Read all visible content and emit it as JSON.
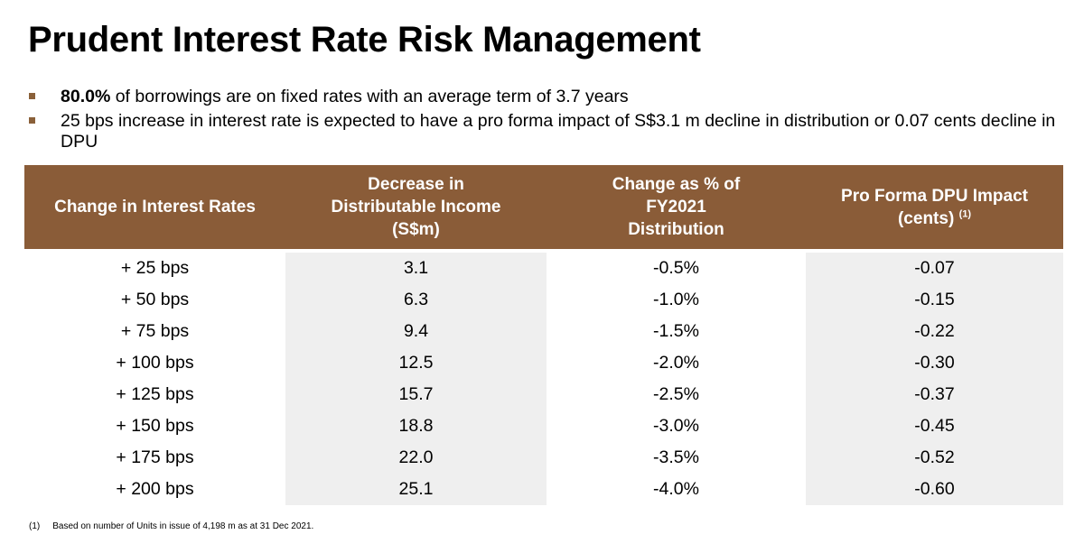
{
  "page": {
    "title": "Prudent Interest Rate Risk Management"
  },
  "bullets": [
    {
      "bold": "80.0%",
      "text": " of borrowings are on fixed rates with an average term of 3.7 years"
    },
    {
      "bold": "",
      "text": "25 bps increase in interest rate is expected to have a pro forma impact of S$3.1 m decline in distribution or 0.07 cents decline in DPU"
    }
  ],
  "table": {
    "headers": {
      "col1": "Change in Interest Rates",
      "col2": "Decrease in Distributable Income (S$m)",
      "col3": "Change as % of FY2021 Distribution",
      "col4": "Pro Forma DPU Impact (cents)",
      "col4_note": "(1)"
    },
    "rows": [
      {
        "rate": "+ 25 bps",
        "decrease": "3.1",
        "change": "-0.5%",
        "dpu": "-0.07"
      },
      {
        "rate": "+ 50 bps",
        "decrease": "6.3",
        "change": "-1.0%",
        "dpu": "-0.15"
      },
      {
        "rate": "+ 75 bps",
        "decrease": "9.4",
        "change": "-1.5%",
        "dpu": "-0.22"
      },
      {
        "rate": "+ 100 bps",
        "decrease": "12.5",
        "change": "-2.0%",
        "dpu": "-0.30"
      },
      {
        "rate": "+ 125 bps",
        "decrease": "15.7",
        "change": "-2.5%",
        "dpu": "-0.37"
      },
      {
        "rate": "+ 150 bps",
        "decrease": "18.8",
        "change": "-3.0%",
        "dpu": "-0.45"
      },
      {
        "rate": "+ 175 bps",
        "decrease": "22.0",
        "change": "-3.5%",
        "dpu": "-0.52"
      },
      {
        "rate": "+ 200 bps",
        "decrease": "25.1",
        "change": "-4.0%",
        "dpu": "-0.60"
      }
    ]
  },
  "footnote": {
    "mark": "(1)",
    "text": "Based on number of Units in issue of 4,198 m as at 31 Dec 2021."
  },
  "colors": {
    "header_bg": "#8a5c38",
    "bullet_marker": "#8a6039",
    "shade": "#efefef"
  }
}
